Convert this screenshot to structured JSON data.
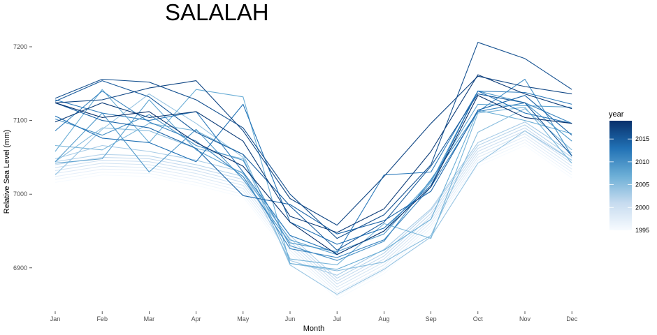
{
  "chart_data": {
    "type": "line",
    "title": "SALALAH",
    "xlabel": "Month",
    "ylabel": "Relative Sea Level (mm)",
    "categories": [
      "Jan",
      "Feb",
      "Mar",
      "Apr",
      "May",
      "Jun",
      "Jul",
      "Aug",
      "Sep",
      "Oct",
      "Nov",
      "Dec"
    ],
    "y_ticks": [
      6900,
      7000,
      7100,
      7200
    ],
    "ylim": [
      6845,
      7230
    ],
    "grid": false,
    "legend": {
      "title": "year",
      "placement": "right",
      "type": "color-gradient",
      "range": [
        1995,
        2019
      ],
      "ticks": [
        1995,
        2000,
        2005,
        2010,
        2015
      ],
      "color_low": "#f7fbff",
      "color_high": "#08306b"
    },
    "series": [
      {
        "year": 1995,
        "values": [
          7016,
          7026,
          7024,
          7012,
          6996,
          6916,
          6858,
          6892,
          6950,
          7038,
          7066,
          7022
        ]
      },
      {
        "year": 1996,
        "values": [
          7020,
          7030,
          7028,
          7016,
          7000,
          6920,
          6862,
          6896,
          6954,
          7042,
          7070,
          7026
        ]
      },
      {
        "year": 1997,
        "values": [
          7024,
          7034,
          7032,
          7020,
          7004,
          6924,
          6866,
          6900,
          6958,
          7046,
          7074,
          7030
        ]
      },
      {
        "year": 1998,
        "values": [
          7028,
          7038,
          7036,
          7024,
          7008,
          6928,
          6870,
          6904,
          6962,
          7050,
          7078,
          7034
        ]
      },
      {
        "year": 1999,
        "values": [
          7032,
          7042,
          7040,
          7028,
          7012,
          6932,
          6874,
          6908,
          6966,
          7054,
          7082,
          7038
        ]
      },
      {
        "year": 2000,
        "values": [
          7036,
          7046,
          7044,
          7032,
          7016,
          6936,
          6878,
          6912,
          6970,
          7058,
          7086,
          7042
        ]
      },
      {
        "year": 2001,
        "values": [
          7040,
          7050,
          7048,
          7036,
          7020,
          6940,
          6882,
          6916,
          6974,
          7062,
          7090,
          7046
        ]
      },
      {
        "year": 2002,
        "values": [
          7044,
          7054,
          7052,
          7040,
          7024,
          6944,
          6886,
          6920,
          6978,
          7066,
          7094,
          7050
        ]
      },
      {
        "year": 2003,
        "values": [
          7048,
          7066,
          7058,
          7046,
          7030,
          6910,
          6890,
          6925,
          6980,
          7070,
          7098,
          7056
        ]
      },
      {
        "year": 2004,
        "values": [
          7026,
          7088,
          7136,
          7096,
          7050,
          6904,
          6864,
          6898,
          6942,
          7042,
          7086,
          7046
        ]
      },
      {
        "year": 2005,
        "values": [
          7044,
          7090,
          7086,
          7062,
          7048,
          6906,
          6896,
          6908,
          6944,
          7084,
          7116,
          7060
        ]
      },
      {
        "year": 2006,
        "values": [
          7066,
          7060,
          7096,
          7086,
          7054,
          6912,
          6904,
          6960,
          6940,
          7110,
          7118,
          7042
        ]
      },
      {
        "year": 2007,
        "values": [
          7058,
          7142,
          7070,
          7142,
          7132,
          6906,
          6898,
          6924,
          6966,
          7114,
          7100,
          7082
        ]
      },
      {
        "year": 2008,
        "values": [
          7042,
          7048,
          7128,
          7060,
          7028,
          6938,
          6918,
          6950,
          7018,
          7122,
          7120,
          7118
        ]
      },
      {
        "year": 2009,
        "values": [
          7044,
          7110,
          7030,
          7088,
          7020,
          6934,
          6922,
          6946,
          7016,
          7140,
          7124,
          7072
        ]
      },
      {
        "year": 2010,
        "values": [
          7102,
          7080,
          7108,
          7066,
          7046,
          6930,
          6910,
          6936,
          7020,
          7112,
          7156,
          7052
        ]
      },
      {
        "year": 2011,
        "values": [
          7086,
          7140,
          7098,
          7072,
          7024,
          6926,
          6914,
          6938,
          7010,
          7112,
          7124,
          7096
        ]
      },
      {
        "year": 2012,
        "values": [
          7128,
          7110,
          7100,
          7112,
          7030,
          6944,
          6920,
          7026,
          7030,
          7140,
          7138,
          7122
        ]
      },
      {
        "year": 2013,
        "values": [
          7106,
          7076,
          7070,
          7044,
          7122,
          6962,
          6932,
          6954,
          7012,
          7140,
          7110,
          7096
        ]
      },
      {
        "year": 2014,
        "values": [
          7124,
          7100,
          7090,
          7062,
          6998,
          6986,
          6946,
          6964,
          7004,
          7114,
          7134,
          7080
        ]
      },
      {
        "year": 2015,
        "values": [
          7126,
          7154,
          7132,
          7084,
          7054,
          6984,
          6924,
          6962,
          7038,
          7136,
          7124,
          7052
        ]
      },
      {
        "year": 2016,
        "values": [
          7130,
          7156,
          7152,
          7128,
          7090,
          7000,
          6940,
          6972,
          7040,
          7206,
          7184,
          7142
        ]
      },
      {
        "year": 2017,
        "values": [
          7124,
          7128,
          7144,
          7154,
          7086,
          6994,
          6958,
          7024,
          7096,
          7160,
          7146,
          7136
        ]
      },
      {
        "year": 2018,
        "values": [
          7098,
          7124,
          7104,
          7112,
          7072,
          6970,
          6948,
          6980,
          7058,
          7162,
          7136,
          7116
        ]
      },
      {
        "year": 2019,
        "values": [
          7124,
          7104,
          7112,
          7070,
          7038,
          6962,
          6918,
          6950,
          7010,
          7134,
          7104,
          7096
        ]
      }
    ]
  }
}
